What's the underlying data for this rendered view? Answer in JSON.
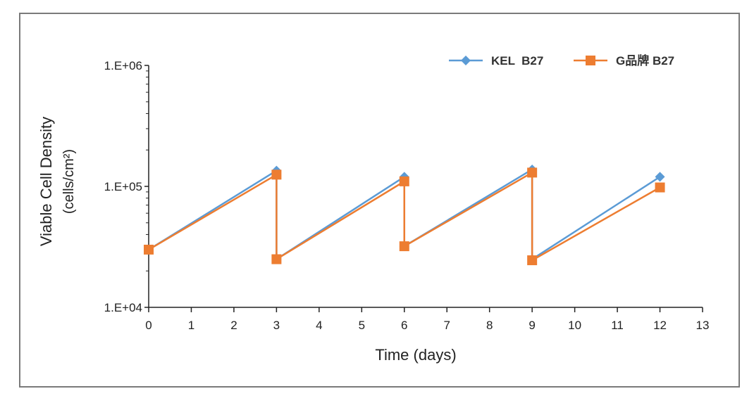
{
  "chart_data": {
    "type": "line",
    "title": "",
    "xlabel": "Time (days)",
    "ylabel": "Viable Cell Density",
    "ylabel_unit": "(cells/cm²)",
    "y_scale": "log",
    "xlim": [
      0,
      13
    ],
    "ylim": [
      10000,
      1000000
    ],
    "x_ticks": [
      "0",
      "1",
      "2",
      "3",
      "4",
      "5",
      "6",
      "7",
      "8",
      "9",
      "10",
      "11",
      "12",
      "13"
    ],
    "y_ticks": [
      "1.E+04",
      "1.E+05",
      "1.E+06"
    ],
    "y_tick_values": [
      10000,
      100000,
      1000000
    ],
    "grid": false,
    "legend_position": "top-right",
    "series": [
      {
        "name": "KEL  B27",
        "color": "#5b9bd5",
        "marker": "diamond",
        "points": [
          [
            0,
            30000
          ],
          [
            3,
            135000
          ],
          [
            3,
            25000
          ],
          [
            6,
            120000
          ],
          [
            6,
            32000
          ],
          [
            9,
            138000
          ],
          [
            9,
            25000
          ],
          [
            12,
            120000
          ]
        ]
      },
      {
        "name": "G品牌 B27",
        "color": "#ed7d31",
        "marker": "square",
        "points": [
          [
            0,
            30000
          ],
          [
            3,
            125000
          ],
          [
            3,
            25000
          ],
          [
            6,
            110000
          ],
          [
            6,
            32000
          ],
          [
            9,
            130000
          ],
          [
            9,
            24500
          ],
          [
            12,
            98000
          ]
        ]
      }
    ]
  }
}
